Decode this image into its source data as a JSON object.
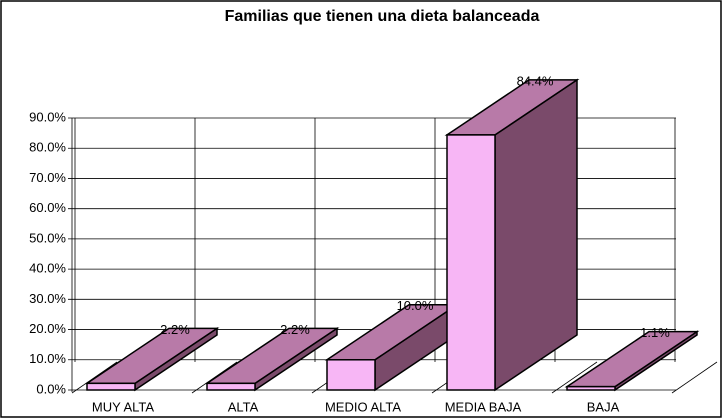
{
  "chart_data": {
    "type": "bar3d",
    "title": "Familias que tienen una dieta balanceada",
    "categories": [
      "MUY ALTA",
      "ALTA",
      "MEDIO ALTA",
      "MEDIA BAJA",
      "BAJA"
    ],
    "values": [
      2.2,
      2.2,
      10.0,
      84.4,
      1.1
    ],
    "value_labels": [
      "2.2%",
      "2.2%",
      "10.0%",
      "84.4%",
      "1.1%"
    ],
    "colors": {
      "front": "#f7b6f5",
      "top": "#b87aa8",
      "side": "#7a4a6a"
    },
    "ylim": [
      0,
      90
    ],
    "yticks": [
      {
        "value": 0,
        "label": "0.0%"
      },
      {
        "value": 10,
        "label": "10.0%"
      },
      {
        "value": 20,
        "label": "20.0%"
      },
      {
        "value": 30,
        "label": "30.0%"
      },
      {
        "value": 40,
        "label": "40.0%"
      },
      {
        "value": 50,
        "label": "50.0%"
      },
      {
        "value": 60,
        "label": "60.0%"
      },
      {
        "value": 70,
        "label": "70.0%"
      },
      {
        "value": 80,
        "label": "80.0%"
      },
      {
        "value": 90,
        "label": "90.0%"
      }
    ],
    "grid": true
  }
}
